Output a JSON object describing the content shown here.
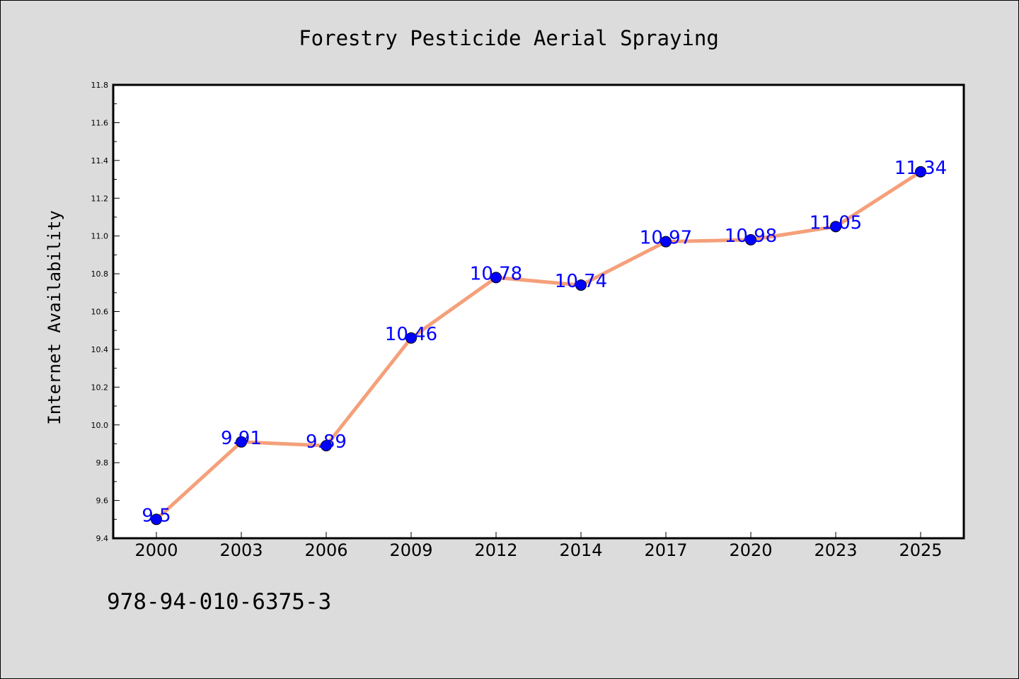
{
  "chart_data": {
    "type": "line",
    "title": "Forestry Pesticide Aerial Spraying",
    "xlabel": "",
    "ylabel": "Internet Availability",
    "categories": [
      "2000",
      "2003",
      "2006",
      "2009",
      "2012",
      "2014",
      "2017",
      "2020",
      "2023",
      "2025"
    ],
    "series": [
      {
        "values": [
          9.5,
          9.91,
          9.89,
          10.46,
          10.78,
          10.74,
          10.97,
          10.98,
          11.05,
          11.34
        ],
        "data_labels": [
          "9.5",
          "9.91",
          "9.89",
          "10.46",
          "10.78",
          "10.74",
          "10.97",
          "10.98",
          "11.05",
          "11.34"
        ],
        "line_color": "#f4a07a",
        "marker_color": "#0000ff",
        "label_color": "#0000ff"
      }
    ],
    "ylim": [
      9.4,
      11.8
    ],
    "yticks": [
      "9.4",
      "9.6",
      "9.8",
      "10.0",
      "10.2",
      "10.4",
      "10.6",
      "10.8",
      "11.0",
      "11.2",
      "11.4",
      "11.6",
      "11.8"
    ],
    "grid": false,
    "legend": "none",
    "background_color": "#dcdcdc",
    "plot_background": "#ffffff"
  },
  "footer": {
    "id_text": "978-94-010-6375-3"
  }
}
